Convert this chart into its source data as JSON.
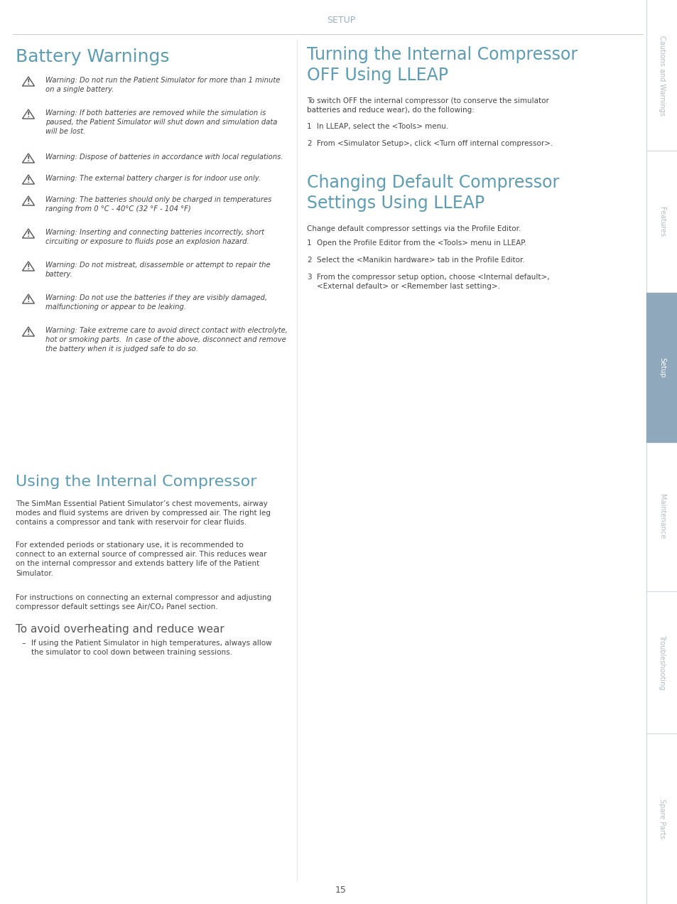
{
  "page_title": "SETUP",
  "page_number": "15",
  "bg_color": "#ffffff",
  "heading_color": "#5b9db5",
  "sidebar_active_color": "#8fa8bc",
  "sidebar_labels": [
    "Cautions and Warnings",
    "Features",
    "Setup",
    "Maintenance",
    "Troubleshooting",
    "Spare Parts"
  ],
  "left_col_title": "Battery Warnings",
  "left_col_warnings": [
    "Warning: Do not run the Patient Simulator for more than 1 minute\non a single battery.",
    "Warning: If both batteries are removed while the simulation is\npaused, the Patient Simulator will shut down and simulation data\nwill be lost.",
    "Warning: Dispose of batteries in accordance with local regulations.",
    "Warning: The external battery charger is for indoor use only.",
    "Warning: The batteries should only be charged in temperatures\nranging from 0 °C - 40°C (32 °F - 104 °F)",
    "Warning: Inserting and connecting batteries incorrectly, short\ncircuiting or exposure to fluids pose an explosion hazard.",
    "Warning: Do not mistreat, disassemble or attempt to repair the\nbattery.",
    "Warning: Do not use the batteries if they are visibly damaged,\nmalfunctioning or appear to be leaking.",
    "Warning: Take extreme care to avoid direct contact with electrolyte,\nhot or smoking parts.  In case of the above, disconnect and remove\nthe battery when it is judged safe to do so."
  ],
  "mid_col_title": "Using the Internal Compressor",
  "mid_col_body1": "The SimMan Essential Patient Simulator’s chest movements, airway\nmodes and fluid systems are driven by compressed air. The right leg\ncontains a compressor and tank with reservoir for clear fluids.",
  "mid_col_body2": "For extended periods or stationary use, it is recommended to\nconnect to an external source of compressed air. This reduces wear\non the internal compressor and extends battery life of the Patient\nSimulator.",
  "mid_col_body3": "For instructions on connecting an external compressor and adjusting\ncompressor default settings see Air/CO₂ Panel section.",
  "mid_col_sub_title": "To avoid overheating and reduce wear",
  "mid_col_bullet": "If using the Patient Simulator in high temperatures, always allow\nthe simulator to cool down between training sessions.",
  "right_col_title1": "Turning the Internal Compressor\nOFF Using LLEAP",
  "right_col_intro1": "To switch OFF the internal compressor (to conserve the simulator\nbatteries and reduce wear), do the following:",
  "right_col_steps1": [
    "In LLEAP, select the <Tools> menu.",
    "From <Simulator Setup>, click <Turn off internal compressor>."
  ],
  "right_col_title2": "Changing Default Compressor\nSettings Using LLEAP",
  "right_col_intro2": "Change default compressor settings via the Profile Editor.",
  "right_col_steps2": [
    "Open the Profile Editor from the <Tools> menu in LLEAP.",
    "Select the <Manikin hardware> tab in the Profile Editor.",
    "From the compressor setup option, choose <Internal default>,\n<External default> or <Remember last setting>."
  ]
}
